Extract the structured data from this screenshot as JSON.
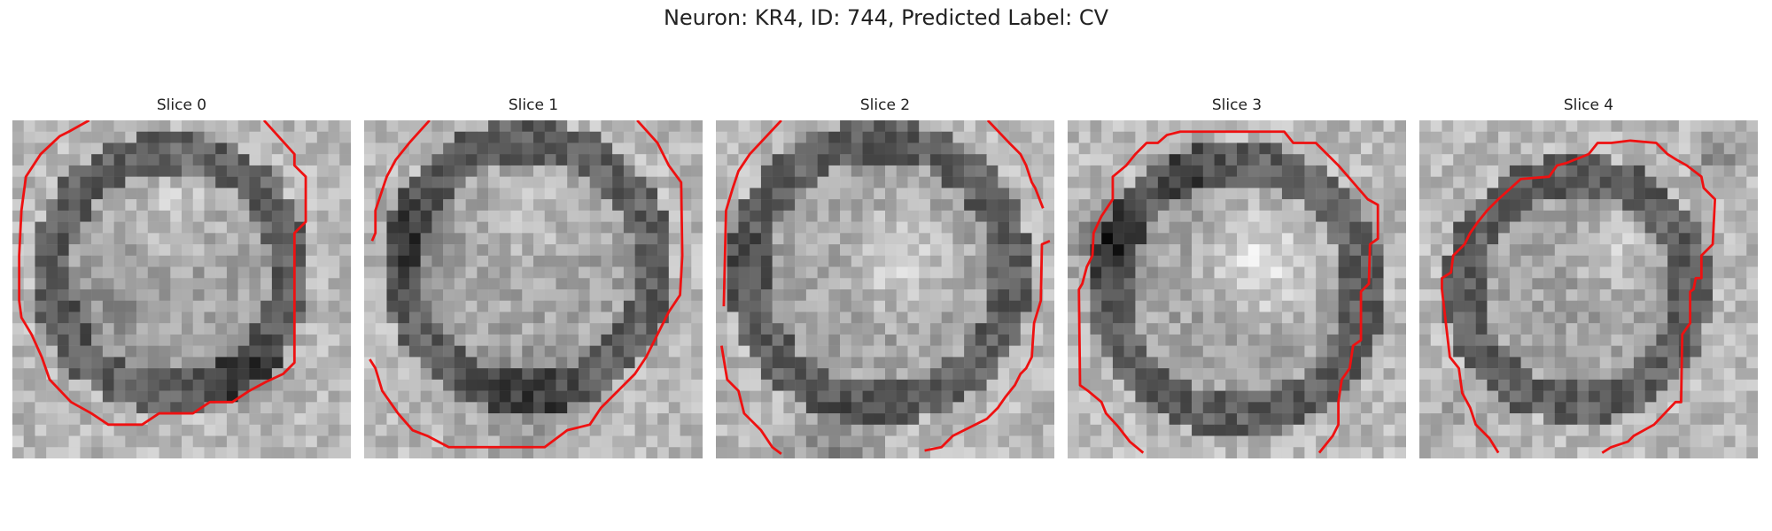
{
  "figure": {
    "title": "Neuron: KR4, ID: 744, Predicted Label: CV",
    "colors": {
      "contour": "#ee1111",
      "background": "#ffffff"
    }
  },
  "slices": [
    {
      "title": "Slice 0"
    },
    {
      "title": "Slice 1"
    },
    {
      "title": "Slice 2"
    },
    {
      "title": "Slice 3"
    },
    {
      "title": "Slice 4"
    }
  ]
}
